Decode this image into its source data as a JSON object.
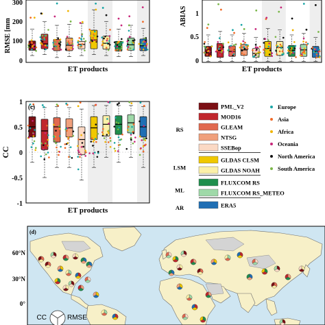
{
  "panels": {
    "a": {
      "ylabel": "RMSE [mm",
      "xlabel": "ET products",
      "ytick_labels": [
        "300",
        "200",
        "100",
        "0"
      ]
    },
    "b": {
      "ylabel": "ABIAS",
      "xlabel": "ET products",
      "ytick_labels": [
        "1",
        "0.5",
        "0"
      ]
    },
    "c": {
      "tag": "(c)",
      "ylabel": "CC",
      "xlabel": "ET products",
      "ytick_labels": [
        "1",
        "0.5",
        "0",
        "-0.5",
        "-1"
      ]
    },
    "d": {
      "tag": "(d)",
      "lat_labels": [
        "60°N",
        "30°N",
        "0°"
      ],
      "pie_key_labels": [
        "CC",
        "RMSE"
      ]
    }
  },
  "legend_products": {
    "groups": [
      {
        "label": "RS",
        "items": [
          {
            "name": "PML_V2",
            "color": "#7b0f14"
          },
          {
            "name": "MOD16",
            "color": "#c0272d"
          },
          {
            "name": "GLEAM",
            "color": "#e1694f"
          },
          {
            "name": "NTSG",
            "color": "#f0a07c"
          },
          {
            "name": "SSEBop",
            "color": "#fbd9c4"
          }
        ]
      },
      {
        "label": "LSM",
        "items": [
          {
            "name": "GLDAS CLSM",
            "color": "#f0c800"
          },
          {
            "name": "GLDAS NOAH",
            "color": "#fbf0a8"
          }
        ]
      },
      {
        "label": "ML",
        "items": [
          {
            "name": "FLUXCOM RS",
            "color": "#1f8e4d"
          },
          {
            "name": "FLUXCOM RS_METEO",
            "color": "#9fd9a8"
          }
        ]
      },
      {
        "label": "AR",
        "items": [
          {
            "name": "ERA5",
            "color": "#1f6fb4"
          }
        ]
      }
    ]
  },
  "legend_regions": [
    {
      "name": "Europe",
      "color": "#1aa6a6"
    },
    {
      "name": "Asia",
      "color": "#f06a28"
    },
    {
      "name": "Africa",
      "color": "#f0b400"
    },
    {
      "name": "Oceania",
      "color": "#c8287a"
    },
    {
      "name": "North America",
      "color": "#111111"
    },
    {
      "name": "South America",
      "color": "#7ab648"
    }
  ],
  "chart_data": [
    {
      "type": "box",
      "panel": "a",
      "ylabel": "RMSE [mm",
      "xlabel": "ET products",
      "ylim": [
        0,
        320
      ],
      "categories": [
        "PML_V2",
        "MOD16",
        "GLEAM",
        "NTSG",
        "SSEBop",
        "GLDAS CLSM",
        "GLDAS NOAH",
        "FLUXCOM RS",
        "FLUXCOM RS_METEO",
        "ERA5"
      ],
      "box_q1": [
        62,
        70,
        60,
        60,
        70,
        70,
        68,
        58,
        62,
        60
      ],
      "box_median": [
        80,
        95,
        82,
        88,
        92,
        115,
        98,
        80,
        90,
        85
      ],
      "box_q3": [
        110,
        145,
        118,
        125,
        108,
        165,
        135,
        108,
        125,
        120
      ],
      "whisker_low": [
        35,
        40,
        25,
        30,
        35,
        40,
        35,
        30,
        30,
        35
      ],
      "whisker_high": [
        170,
        210,
        190,
        195,
        200,
        270,
        210,
        170,
        190,
        175
      ]
    },
    {
      "type": "box",
      "panel": "b",
      "ylabel": "ABIAS",
      "xlabel": "ET products",
      "ylim": [
        0,
        1.25
      ],
      "categories": [
        "PML_V2",
        "MOD16",
        "GLEAM",
        "NTSG",
        "SSEBop",
        "GLDAS CLSM",
        "GLDAS NOAH",
        "FLUXCOM RS",
        "FLUXCOM RS_METEO",
        "ERA5"
      ],
      "box_q1": [
        0.12,
        0.1,
        0.12,
        0.14,
        0.1,
        0.12,
        0.14,
        0.12,
        0.12,
        0.1
      ],
      "box_median": [
        0.2,
        0.24,
        0.22,
        0.25,
        0.18,
        0.28,
        0.3,
        0.24,
        0.25,
        0.22
      ],
      "box_q3": [
        0.32,
        0.38,
        0.33,
        0.36,
        0.28,
        0.42,
        0.42,
        0.34,
        0.36,
        0.32
      ],
      "whisker_low": [
        0.02,
        0.02,
        0.02,
        0.02,
        0.02,
        0.02,
        0.02,
        0.02,
        0.02,
        0.02
      ],
      "whisker_high": [
        0.55,
        0.62,
        0.55,
        0.58,
        0.5,
        0.68,
        0.65,
        0.55,
        0.58,
        0.5
      ]
    },
    {
      "type": "box",
      "panel": "c",
      "ylabel": "CC",
      "xlabel": "ET products",
      "ylim": [
        -1,
        1
      ],
      "categories": [
        "PML_V2",
        "MOD16",
        "GLEAM",
        "NTSG",
        "SSEBop",
        "GLDAS CLSM",
        "GLDAS NOAH",
        "FLUXCOM RS",
        "FLUXCOM RS_METEO",
        "ERA5"
      ],
      "box_q1": [
        0.3,
        0.05,
        0.2,
        0.3,
        -0.05,
        0.25,
        0.32,
        0.35,
        0.38,
        0.3
      ],
      "box_median": [
        0.5,
        0.42,
        0.5,
        0.48,
        0.25,
        0.48,
        0.55,
        0.55,
        0.58,
        0.5
      ],
      "box_q3": [
        0.7,
        0.65,
        0.68,
        0.66,
        0.5,
        0.7,
        0.72,
        0.72,
        0.74,
        0.7
      ],
      "whisker_low": [
        -0.2,
        -0.5,
        -0.3,
        -0.3,
        -0.55,
        -0.3,
        -0.1,
        -0.2,
        -0.1,
        -0.3
      ],
      "whisker_high": [
        0.9,
        0.88,
        0.9,
        0.88,
        0.85,
        0.92,
        0.92,
        0.92,
        0.92,
        0.9
      ]
    }
  ]
}
